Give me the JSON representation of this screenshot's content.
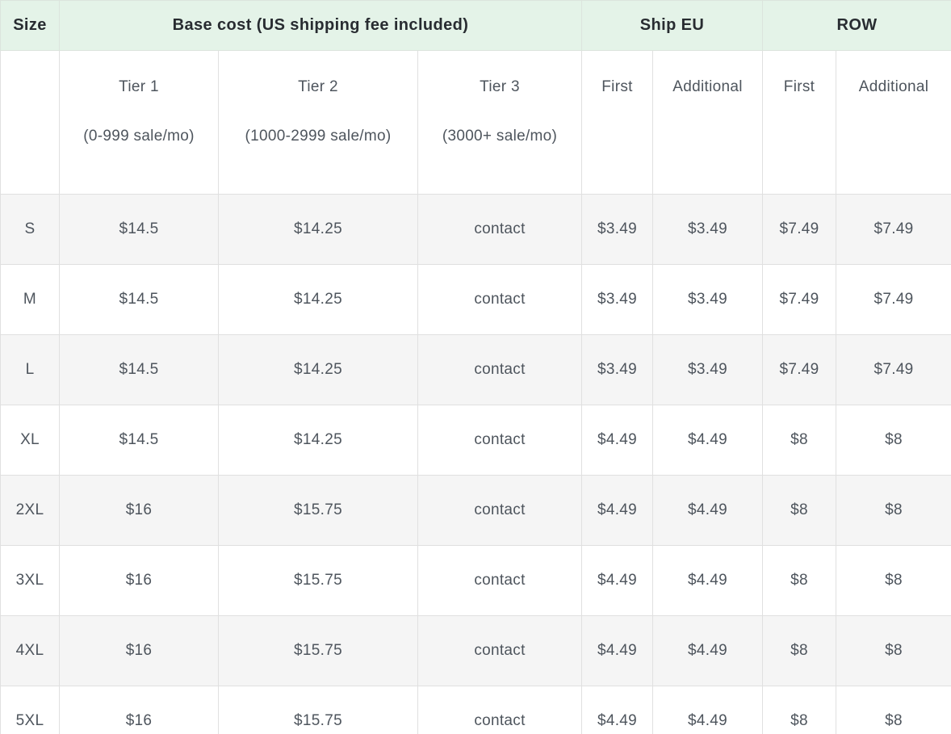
{
  "colors": {
    "header_bg": "#e4f3e8",
    "stripe_bg": "#f5f5f5",
    "border": "#e0e0e0",
    "header_text": "#282c31",
    "body_text": "#4e555d"
  },
  "table": {
    "header_groups": [
      {
        "label": "Size"
      },
      {
        "label": "Base cost (US shipping fee included)"
      },
      {
        "label": "Ship EU"
      },
      {
        "label": "ROW"
      }
    ],
    "sub_headers": [
      {
        "title": "Tier 1",
        "subtitle": "(0-999 sale/mo)"
      },
      {
        "title": "Tier 2",
        "subtitle": "(1000-2999 sale/mo)"
      },
      {
        "title": "Tier 3",
        "subtitle": "(3000+ sale/mo)"
      },
      {
        "title": "First",
        "subtitle": ""
      },
      {
        "title": "Additional",
        "subtitle": ""
      },
      {
        "title": "First",
        "subtitle": ""
      },
      {
        "title": "Additional",
        "subtitle": ""
      }
    ],
    "rows": [
      {
        "size": "S",
        "cells": [
          "$14.5",
          "$14.25",
          "contact",
          "$3.49",
          "$3.49",
          "$7.49",
          "$7.49"
        ]
      },
      {
        "size": "M",
        "cells": [
          "$14.5",
          "$14.25",
          "contact",
          "$3.49",
          "$3.49",
          "$7.49",
          "$7.49"
        ]
      },
      {
        "size": "L",
        "cells": [
          "$14.5",
          "$14.25",
          "contact",
          "$3.49",
          "$3.49",
          "$7.49",
          "$7.49"
        ]
      },
      {
        "size": "XL",
        "cells": [
          "$14.5",
          "$14.25",
          "contact",
          "$4.49",
          "$4.49",
          "$8",
          "$8"
        ]
      },
      {
        "size": "2XL",
        "cells": [
          "$16",
          "$15.75",
          "contact",
          "$4.49",
          "$4.49",
          "$8",
          "$8"
        ]
      },
      {
        "size": "3XL",
        "cells": [
          "$16",
          "$15.75",
          "contact",
          "$4.49",
          "$4.49",
          "$8",
          "$8"
        ]
      },
      {
        "size": "4XL",
        "cells": [
          "$16",
          "$15.75",
          "contact",
          "$4.49",
          "$4.49",
          "$8",
          "$8"
        ]
      },
      {
        "size": "5XL",
        "cells": [
          "$16",
          "$15.75",
          "contact",
          "$4.49",
          "$4.49",
          "$8",
          "$8"
        ]
      }
    ]
  }
}
